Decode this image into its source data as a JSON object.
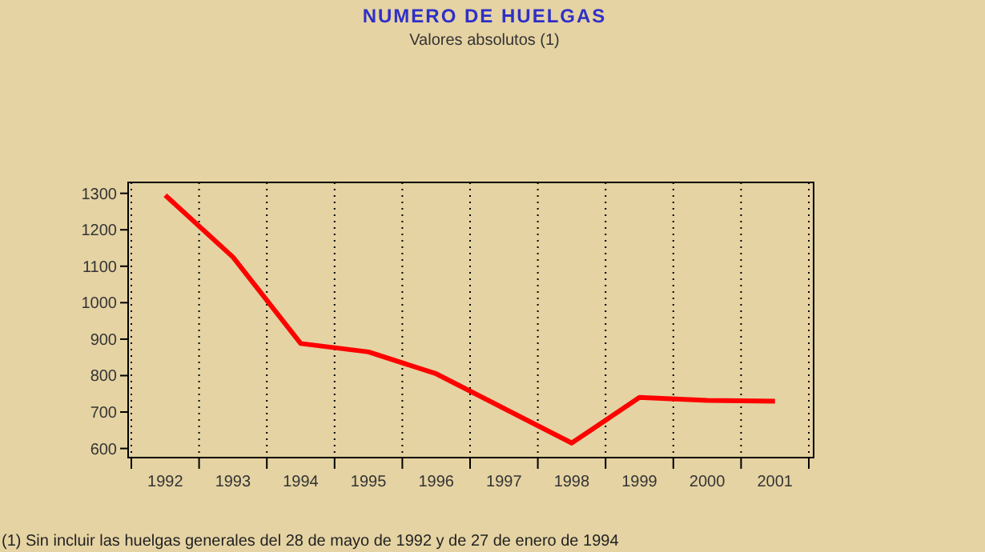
{
  "chart_data": {
    "type": "line",
    "title": "NUMERO DE HUELGAS",
    "subtitle": "Valores absolutos (1)",
    "categories": [
      "1992",
      "1993",
      "1994",
      "1995",
      "1996",
      "1997",
      "1998",
      "1999",
      "2000",
      "2001"
    ],
    "series": [
      {
        "color": "#ff0000",
        "values": [
          1295,
          1125,
          888,
          865,
          805,
          710,
          615,
          740,
          732,
          730
        ]
      }
    ],
    "ylim": [
      575,
      1330
    ],
    "yticks": [
      600,
      700,
      800,
      900,
      1000,
      1100,
      1200,
      1300
    ],
    "grid": "x",
    "marker": "none",
    "line_style": "solid",
    "annotations": [
      "(1) Sin incluir las huelgas generales del 28 de mayo de 1992 y de 27 de enero de 1994"
    ]
  }
}
